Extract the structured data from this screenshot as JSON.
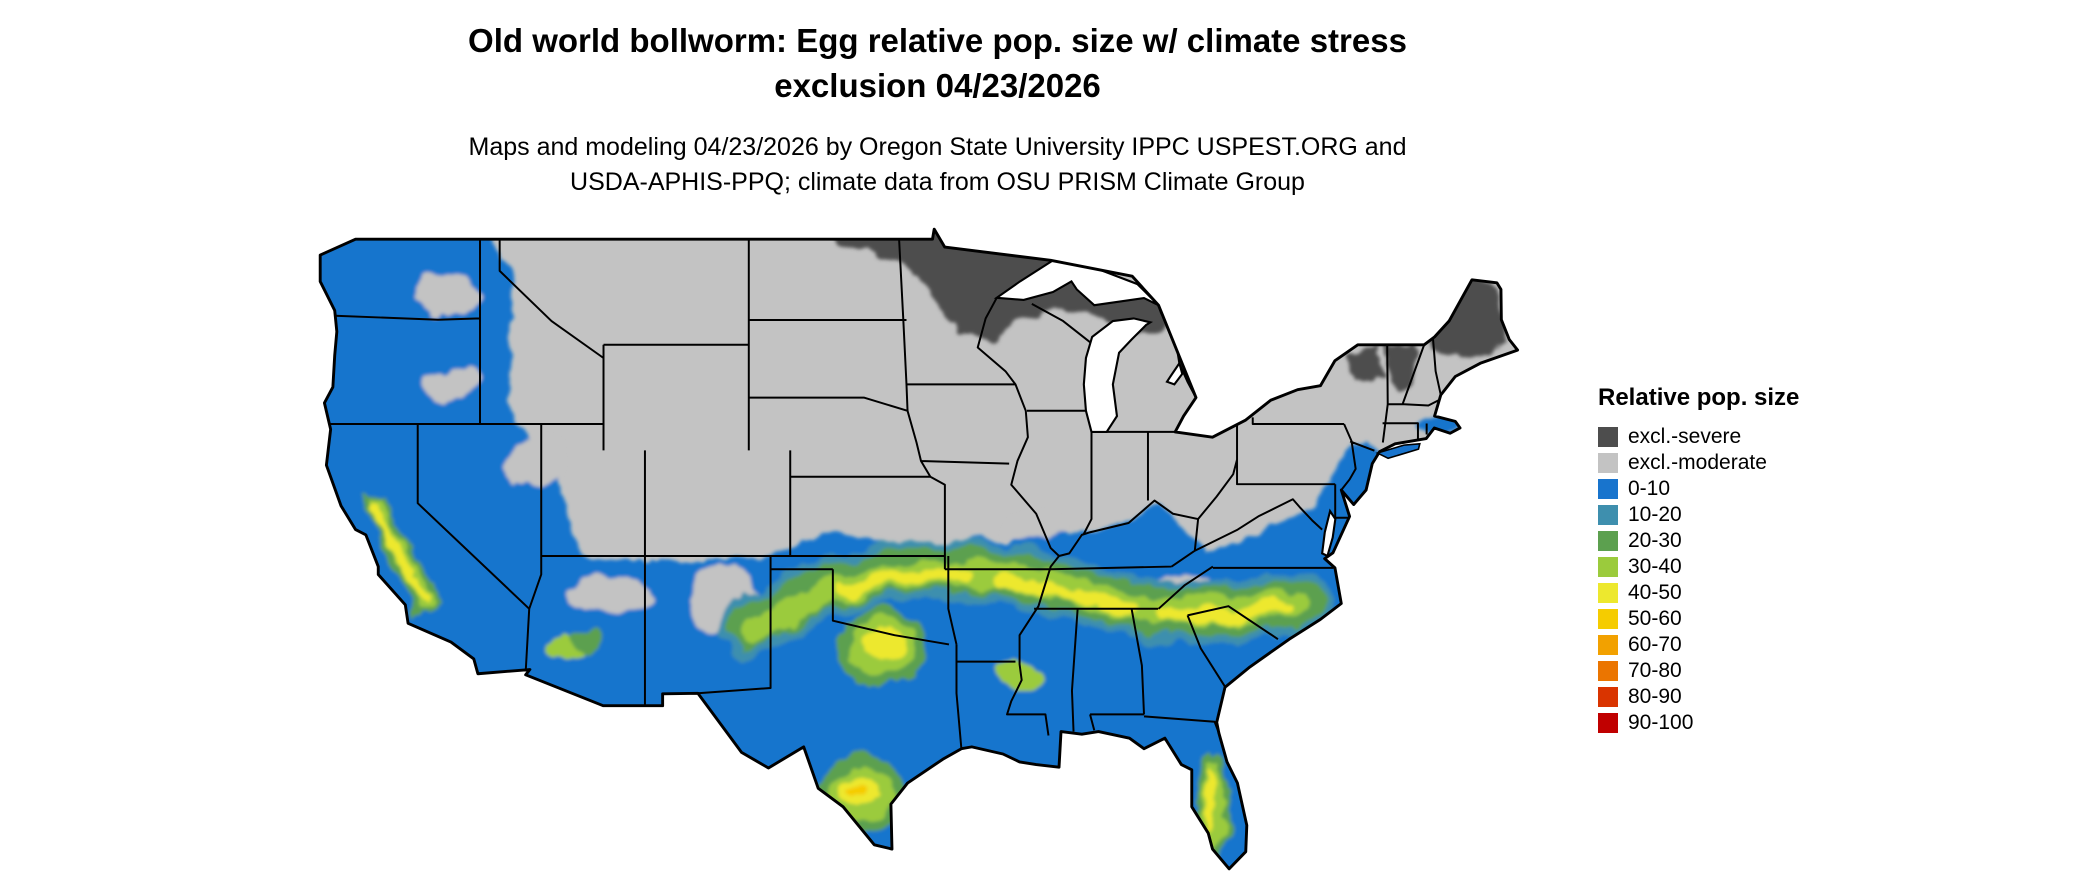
{
  "header": {
    "title_line1": "Old world bollworm: Egg relative pop. size w/ climate stress",
    "title_line2": "exclusion 04/23/2026",
    "subtitle_line1": "Maps and modeling 04/23/2026 by Oregon State University IPPC USPEST.ORG and",
    "subtitle_line2": "USDA-APHIS-PPQ; climate data from OSU PRISM Climate Group"
  },
  "legend": {
    "title": "Relative pop. size",
    "items": [
      {
        "label": "excl.-severe",
        "color": "#4D4D4D"
      },
      {
        "label": "excl.-moderate",
        "color": "#C3C3C3"
      },
      {
        "label": "0-10",
        "color": "#1874CD"
      },
      {
        "label": "10-20",
        "color": "#3E8FAE"
      },
      {
        "label": "20-30",
        "color": "#5CA04F"
      },
      {
        "label": "30-40",
        "color": "#9BCB3C"
      },
      {
        "label": "40-50",
        "color": "#EDE82E"
      },
      {
        "label": "50-60",
        "color": "#F5CC00"
      },
      {
        "label": "60-70",
        "color": "#F2A100"
      },
      {
        "label": "70-80",
        "color": "#EB7500"
      },
      {
        "label": "80-90",
        "color": "#D93400"
      },
      {
        "label": "90-100",
        "color": "#C00000"
      }
    ]
  },
  "map": {
    "colors": {
      "moderate": "#C3C3C3",
      "severe": "#4D4D4D",
      "blue": "#1874CD",
      "teal": "#3E8FAE",
      "green": "#5CA04F",
      "yellowgreen": "#9BCB3C",
      "yellow": "#EDE82E",
      "gold": "#F5CC00",
      "outline": "#000000",
      "water": "#FFFFFF"
    }
  }
}
